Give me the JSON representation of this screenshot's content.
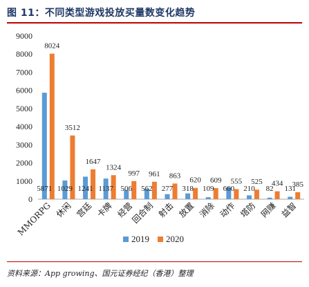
{
  "header": {
    "title": "图 11：不同类型游戏投放买量数变化趋势"
  },
  "footer": {
    "source": "资料来源：App growing、国元证券经纪（香港）整理"
  },
  "chart_data": {
    "type": "bar",
    "title": "",
    "xlabel": "",
    "ylabel": "",
    "ylim": [
      0,
      9000
    ],
    "yticks": [
      0,
      1000,
      2000,
      3000,
      4000,
      5000,
      6000,
      7000,
      8000,
      9000
    ],
    "grid": false,
    "legend_position": "bottom",
    "categories": [
      "MMORPG",
      "休闲",
      "宫廷",
      "卡牌",
      "经营",
      "回合制",
      "射击",
      "放置",
      "消除",
      "动作",
      "塔防",
      "网赚",
      "益智"
    ],
    "series": [
      {
        "name": "2019",
        "color": "#5b9bd5",
        "values": [
          5871,
          1029,
          1241,
          1137,
          506,
          562,
          277,
          318,
          109,
          660,
          210,
          82,
          131
        ]
      },
      {
        "name": "2020",
        "color": "#ed7d31",
        "values": [
          8024,
          3512,
          1647,
          1324,
          997,
          961,
          863,
          620,
          609,
          555,
          525,
          434,
          385
        ]
      }
    ]
  }
}
